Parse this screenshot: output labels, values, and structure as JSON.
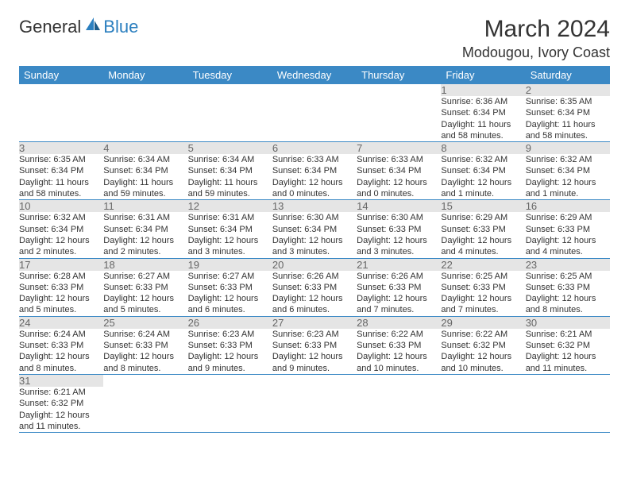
{
  "logo": {
    "text1": "General",
    "text2": "Blue"
  },
  "title": "March 2024",
  "subtitle": "Modougou, Ivory Coast",
  "weekdays": [
    "Sunday",
    "Monday",
    "Tuesday",
    "Wednesday",
    "Thursday",
    "Friday",
    "Saturday"
  ],
  "colors": {
    "headerBg": "#3b89c5",
    "rowBorder": "#3b89c5",
    "dayNumBg": "#e5e5e5",
    "logoBlue": "#2b7fbf"
  },
  "blankStart": 5,
  "days": [
    {
      "n": 1,
      "sunrise": "6:36 AM",
      "sunset": "6:34 PM",
      "daylight": "11 hours and 58 minutes."
    },
    {
      "n": 2,
      "sunrise": "6:35 AM",
      "sunset": "6:34 PM",
      "daylight": "11 hours and 58 minutes."
    },
    {
      "n": 3,
      "sunrise": "6:35 AM",
      "sunset": "6:34 PM",
      "daylight": "11 hours and 58 minutes."
    },
    {
      "n": 4,
      "sunrise": "6:34 AM",
      "sunset": "6:34 PM",
      "daylight": "11 hours and 59 minutes."
    },
    {
      "n": 5,
      "sunrise": "6:34 AM",
      "sunset": "6:34 PM",
      "daylight": "11 hours and 59 minutes."
    },
    {
      "n": 6,
      "sunrise": "6:33 AM",
      "sunset": "6:34 PM",
      "daylight": "12 hours and 0 minutes."
    },
    {
      "n": 7,
      "sunrise": "6:33 AM",
      "sunset": "6:34 PM",
      "daylight": "12 hours and 0 minutes."
    },
    {
      "n": 8,
      "sunrise": "6:32 AM",
      "sunset": "6:34 PM",
      "daylight": "12 hours and 1 minute."
    },
    {
      "n": 9,
      "sunrise": "6:32 AM",
      "sunset": "6:34 PM",
      "daylight": "12 hours and 1 minute."
    },
    {
      "n": 10,
      "sunrise": "6:32 AM",
      "sunset": "6:34 PM",
      "daylight": "12 hours and 2 minutes."
    },
    {
      "n": 11,
      "sunrise": "6:31 AM",
      "sunset": "6:34 PM",
      "daylight": "12 hours and 2 minutes."
    },
    {
      "n": 12,
      "sunrise": "6:31 AM",
      "sunset": "6:34 PM",
      "daylight": "12 hours and 3 minutes."
    },
    {
      "n": 13,
      "sunrise": "6:30 AM",
      "sunset": "6:34 PM",
      "daylight": "12 hours and 3 minutes."
    },
    {
      "n": 14,
      "sunrise": "6:30 AM",
      "sunset": "6:33 PM",
      "daylight": "12 hours and 3 minutes."
    },
    {
      "n": 15,
      "sunrise": "6:29 AM",
      "sunset": "6:33 PM",
      "daylight": "12 hours and 4 minutes."
    },
    {
      "n": 16,
      "sunrise": "6:29 AM",
      "sunset": "6:33 PM",
      "daylight": "12 hours and 4 minutes."
    },
    {
      "n": 17,
      "sunrise": "6:28 AM",
      "sunset": "6:33 PM",
      "daylight": "12 hours and 5 minutes."
    },
    {
      "n": 18,
      "sunrise": "6:27 AM",
      "sunset": "6:33 PM",
      "daylight": "12 hours and 5 minutes."
    },
    {
      "n": 19,
      "sunrise": "6:27 AM",
      "sunset": "6:33 PM",
      "daylight": "12 hours and 6 minutes."
    },
    {
      "n": 20,
      "sunrise": "6:26 AM",
      "sunset": "6:33 PM",
      "daylight": "12 hours and 6 minutes."
    },
    {
      "n": 21,
      "sunrise": "6:26 AM",
      "sunset": "6:33 PM",
      "daylight": "12 hours and 7 minutes."
    },
    {
      "n": 22,
      "sunrise": "6:25 AM",
      "sunset": "6:33 PM",
      "daylight": "12 hours and 7 minutes."
    },
    {
      "n": 23,
      "sunrise": "6:25 AM",
      "sunset": "6:33 PM",
      "daylight": "12 hours and 8 minutes."
    },
    {
      "n": 24,
      "sunrise": "6:24 AM",
      "sunset": "6:33 PM",
      "daylight": "12 hours and 8 minutes."
    },
    {
      "n": 25,
      "sunrise": "6:24 AM",
      "sunset": "6:33 PM",
      "daylight": "12 hours and 8 minutes."
    },
    {
      "n": 26,
      "sunrise": "6:23 AM",
      "sunset": "6:33 PM",
      "daylight": "12 hours and 9 minutes."
    },
    {
      "n": 27,
      "sunrise": "6:23 AM",
      "sunset": "6:33 PM",
      "daylight": "12 hours and 9 minutes."
    },
    {
      "n": 28,
      "sunrise": "6:22 AM",
      "sunset": "6:33 PM",
      "daylight": "12 hours and 10 minutes."
    },
    {
      "n": 29,
      "sunrise": "6:22 AM",
      "sunset": "6:32 PM",
      "daylight": "12 hours and 10 minutes."
    },
    {
      "n": 30,
      "sunrise": "6:21 AM",
      "sunset": "6:32 PM",
      "daylight": "12 hours and 11 minutes."
    },
    {
      "n": 31,
      "sunrise": "6:21 AM",
      "sunset": "6:32 PM",
      "daylight": "12 hours and 11 minutes."
    }
  ],
  "labels": {
    "sunrise": "Sunrise:",
    "sunset": "Sunset:",
    "daylight": "Daylight:"
  }
}
